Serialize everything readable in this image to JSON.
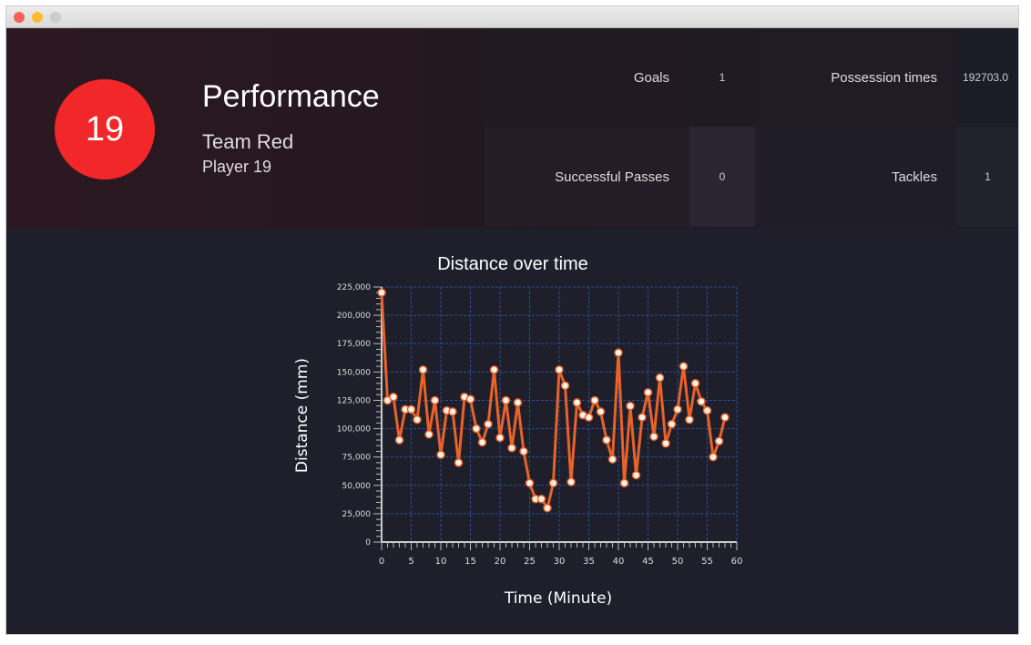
{
  "header": {
    "number": "19",
    "title": "Performance",
    "team": "Team Red",
    "player": "Player 19"
  },
  "stats": [
    {
      "label": "Goals",
      "value": "1"
    },
    {
      "label": "Possession times",
      "value": "192703.0"
    },
    {
      "label": "Successful Passes",
      "value": "0"
    },
    {
      "label": "Tackles",
      "value": "1"
    }
  ],
  "colors": {
    "badge": "#f2272a",
    "line": "#e8622a",
    "grid": "#2a4f9a"
  },
  "chart_data": {
    "type": "line",
    "title": "Distance over time",
    "xlabel": "Time (Minute)",
    "ylabel": "Distance (mm)",
    "xlim": [
      0,
      60
    ],
    "ylim": [
      0,
      225000
    ],
    "grid": true,
    "xticks": [
      "0",
      "5",
      "10",
      "15",
      "20",
      "25",
      "30",
      "35",
      "40",
      "45",
      "50",
      "55",
      "60"
    ],
    "yticks": [
      "0",
      "25,000",
      "50,000",
      "75,000",
      "100,000",
      "125,000",
      "150,000",
      "175,000",
      "200,000",
      "225,000"
    ],
    "x": [
      0,
      1,
      2,
      3,
      4,
      5,
      6,
      7,
      8,
      9,
      10,
      11,
      12,
      13,
      14,
      15,
      16,
      17,
      18,
      19,
      20,
      21,
      22,
      23,
      24,
      25,
      26,
      27,
      28,
      29,
      30,
      31,
      32,
      33,
      34,
      35,
      36,
      37,
      38,
      39,
      40,
      41,
      42,
      43,
      44,
      45,
      46,
      47,
      48,
      49,
      50,
      51,
      52,
      53,
      54,
      55,
      56,
      57,
      58
    ],
    "y": [
      220000,
      125000,
      128000,
      90000,
      117000,
      117000,
      108000,
      152000,
      95000,
      125000,
      77000,
      116000,
      115000,
      70000,
      128000,
      126000,
      100000,
      88000,
      104000,
      152000,
      92000,
      125000,
      83000,
      123000,
      80000,
      52000,
      38000,
      38000,
      30000,
      52000,
      152000,
      138000,
      53000,
      123000,
      112000,
      110000,
      125000,
      115000,
      90000,
      73000,
      167000,
      52000,
      120000,
      59000,
      110000,
      132000,
      93000,
      145000,
      87000,
      104000,
      117000,
      155000,
      108000,
      140000,
      124000,
      116000,
      75000,
      89000,
      110000
    ]
  }
}
